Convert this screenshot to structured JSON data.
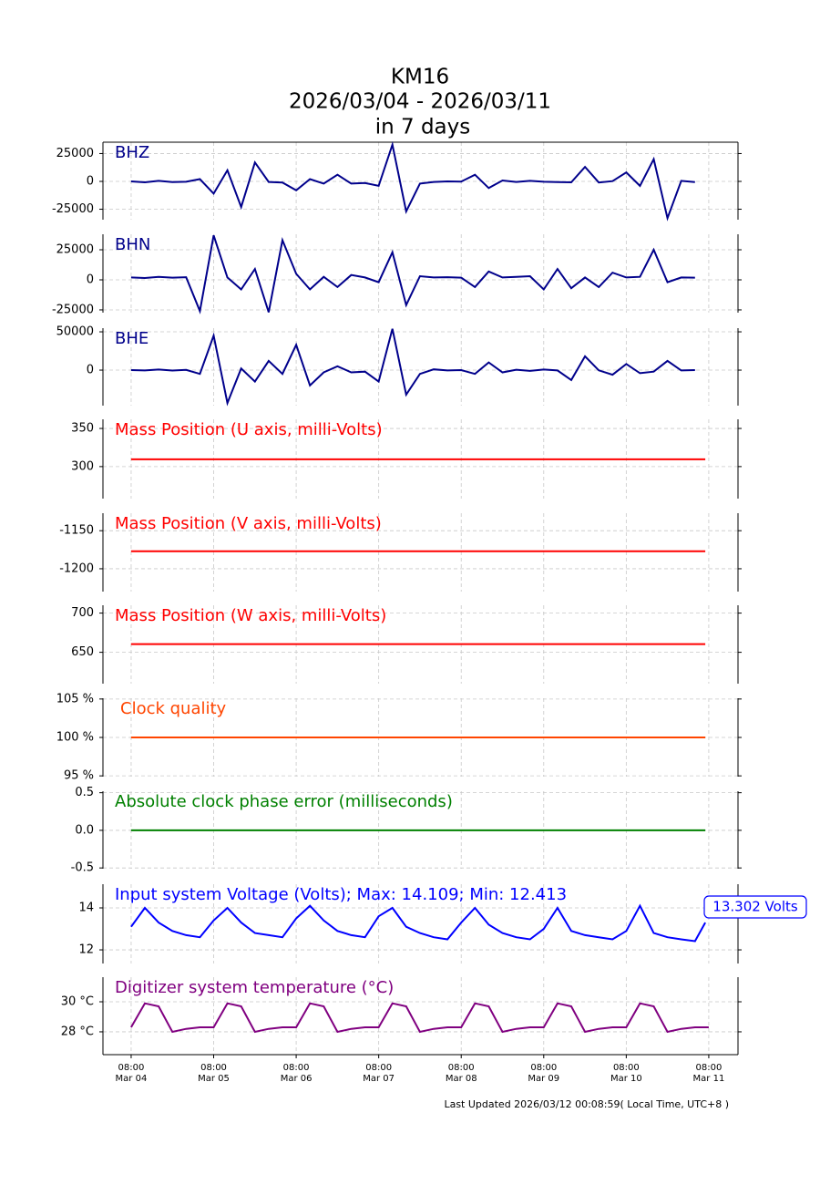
{
  "title": [
    "KM16",
    "2026/03/04 - 2026/03/11",
    "in 7 days"
  ],
  "footer": "Last Updated 2026/03/12 00:08:59( Local Time, UTC+8 )",
  "chart_data": [
    {
      "type": "line",
      "title": "BHZ",
      "grid": true,
      "xlim": [
        "Mar 03 23:48",
        "Mar 11 16:30"
      ],
      "ylim": [
        -34400,
        35200
      ],
      "yticks": [
        25000,
        0,
        -25000
      ],
      "series": [
        {
          "color": "#00008b",
          "x": [
            "Mar 04 08:00",
            "Mar 04 12:00",
            "Mar 04 16:00",
            "Mar 04 20:00",
            "Mar 05 00:00",
            "Mar 05 04:00",
            "Mar 05 08:00",
            "Mar 05 12:00",
            "Mar 05 16:00",
            "Mar 05 20:00",
            "Mar 06 00:00",
            "Mar 06 04:00",
            "Mar 06 08:00",
            "Mar 06 12:00",
            "Mar 06 16:00",
            "Mar 06 20:00",
            "Mar 07 00:00",
            "Mar 07 04:00",
            "Mar 07 08:00",
            "Mar 07 12:00",
            "Mar 07 16:00",
            "Mar 07 20:00",
            "Mar 08 00:00",
            "Mar 08 04:00",
            "Mar 08 08:00",
            "Mar 08 12:00",
            "Mar 08 16:00",
            "Mar 08 20:00",
            "Mar 09 00:00",
            "Mar 09 04:00",
            "Mar 09 08:00",
            "Mar 09 12:00",
            "Mar 09 16:00",
            "Mar 09 20:00",
            "Mar 10 00:00",
            "Mar 10 04:00",
            "Mar 10 08:00",
            "Mar 10 12:00",
            "Mar 10 16:00",
            "Mar 10 20:00",
            "Mar 11 00:00",
            "Mar 11 04:00"
          ],
          "values": [
            0,
            -800,
            500,
            -700,
            -300,
            2000,
            -11000,
            10000,
            -23000,
            17000,
            -500,
            -1000,
            -8000,
            2000,
            -2000,
            6000,
            -2000,
            -1500,
            -4000,
            33000,
            -27000,
            -2000,
            -500,
            0,
            -200,
            6000,
            -6000,
            800,
            -500,
            500,
            -300,
            -700,
            -800,
            13000,
            -1000,
            200,
            8000,
            -4000,
            20000,
            -33000,
            500,
            -700
          ]
        }
      ]
    },
    {
      "type": "line",
      "title": "BHN",
      "grid": true,
      "xlim": [
        "Mar 03 23:48",
        "Mar 11 16:30"
      ],
      "ylim": [
        -27300,
        37900
      ],
      "yticks": [
        25000,
        0,
        -25000
      ],
      "series": [
        {
          "color": "#00008b",
          "x": [
            "Mar 04 08:00",
            "Mar 04 12:00",
            "Mar 04 16:00",
            "Mar 04 20:00",
            "Mar 05 00:00",
            "Mar 05 04:00",
            "Mar 05 08:00",
            "Mar 05 12:00",
            "Mar 05 16:00",
            "Mar 05 20:00",
            "Mar 06 00:00",
            "Mar 06 04:00",
            "Mar 06 08:00",
            "Mar 06 12:00",
            "Mar 06 16:00",
            "Mar 06 20:00",
            "Mar 07 00:00",
            "Mar 07 04:00",
            "Mar 07 08:00",
            "Mar 07 12:00",
            "Mar 07 16:00",
            "Mar 07 20:00",
            "Mar 08 00:00",
            "Mar 08 04:00",
            "Mar 08 08:00",
            "Mar 08 12:00",
            "Mar 08 16:00",
            "Mar 08 20:00",
            "Mar 09 00:00",
            "Mar 09 04:00",
            "Mar 09 08:00",
            "Mar 09 12:00",
            "Mar 09 16:00",
            "Mar 09 20:00",
            "Mar 10 00:00",
            "Mar 10 04:00",
            "Mar 10 08:00",
            "Mar 10 12:00",
            "Mar 10 16:00",
            "Mar 10 20:00",
            "Mar 11 00:00",
            "Mar 11 04:00"
          ],
          "values": [
            2000,
            1500,
            2500,
            1800,
            2200,
            -26000,
            37000,
            2000,
            -8000,
            9000,
            -27000,
            33000,
            5000,
            -8000,
            2500,
            -6000,
            4000,
            2000,
            -2000,
            23000,
            -21000,
            3000,
            2000,
            2200,
            1800,
            -6000,
            7000,
            2000,
            2500,
            3000,
            -8000,
            9000,
            -7000,
            2000,
            -6000,
            6000,
            2000,
            2500,
            25000,
            -2000,
            2000,
            1800
          ]
        }
      ]
    },
    {
      "type": "line",
      "title": "BHE",
      "grid": true,
      "xlim": [
        "Mar 03 23:48",
        "Mar 11 16:30"
      ],
      "ylim": [
        -46400,
        54800
      ],
      "yticks": [
        50000,
        0
      ],
      "series": [
        {
          "color": "#00008b",
          "x": [
            "Mar 04 08:00",
            "Mar 04 12:00",
            "Mar 04 16:00",
            "Mar 04 20:00",
            "Mar 05 00:00",
            "Mar 05 04:00",
            "Mar 05 08:00",
            "Mar 05 12:00",
            "Mar 05 16:00",
            "Mar 05 20:00",
            "Mar 06 00:00",
            "Mar 06 04:00",
            "Mar 06 08:00",
            "Mar 06 12:00",
            "Mar 06 16:00",
            "Mar 06 20:00",
            "Mar 07 00:00",
            "Mar 07 04:00",
            "Mar 07 08:00",
            "Mar 07 12:00",
            "Mar 07 16:00",
            "Mar 07 20:00",
            "Mar 08 00:00",
            "Mar 08 04:00",
            "Mar 08 08:00",
            "Mar 08 12:00",
            "Mar 08 16:00",
            "Mar 08 20:00",
            "Mar 09 00:00",
            "Mar 09 04:00",
            "Mar 09 08:00",
            "Mar 09 12:00",
            "Mar 09 16:00",
            "Mar 09 20:00",
            "Mar 10 00:00",
            "Mar 10 04:00",
            "Mar 10 08:00",
            "Mar 10 12:00",
            "Mar 10 16:00",
            "Mar 10 20:00",
            "Mar 11 00:00",
            "Mar 11 04:00"
          ],
          "values": [
            0,
            -500,
            800,
            -600,
            300,
            -5000,
            45000,
            -43000,
            2000,
            -15000,
            12000,
            -5000,
            33000,
            -20000,
            -3000,
            5000,
            -3000,
            -2000,
            -15000,
            54000,
            -32000,
            -5000,
            1000,
            -500,
            0,
            -5000,
            10000,
            -3000,
            500,
            -1000,
            800,
            -500,
            -13000,
            18000,
            -300,
            -6000,
            8000,
            -4000,
            -2000,
            12000,
            -500,
            0
          ]
        }
      ]
    },
    {
      "type": "line",
      "title": "Mass Position (U axis, milli-Volts)",
      "grid": true,
      "xlim": [
        "Mar 03 23:48",
        "Mar 11 16:30"
      ],
      "ylim": [
        258,
        362
      ],
      "yticks": [
        350,
        300
      ],
      "series": [
        {
          "color": "#ff0000",
          "x": [
            "Mar 04 08:00",
            "Mar 11 07:00"
          ],
          "values": [
            309.5,
            309.5
          ]
        }
      ]
    },
    {
      "type": "line",
      "title": "Mass Position (V axis, milli-Volts)",
      "grid": true,
      "xlim": [
        "Mar 03 23:48",
        "Mar 11 16:30"
      ],
      "ylim": [
        -1230,
        -1127
      ],
      "yticks": [
        -1150,
        -1200
      ],
      "series": [
        {
          "color": "#ff0000",
          "x": [
            "Mar 04 08:00",
            "Mar 11 07:00"
          ],
          "values": [
            -1177,
            -1177
          ]
        }
      ]
    },
    {
      "type": "line",
      "title": "Mass Position (W axis, milli-Volts)",
      "grid": true,
      "xlim": [
        "Mar 03 23:48",
        "Mar 11 16:30"
      ],
      "ylim": [
        610,
        710
      ],
      "yticks": [
        700,
        650
      ],
      "series": [
        {
          "color": "#ff0000",
          "x": [
            "Mar 04 08:00",
            "Mar 11 07:00"
          ],
          "values": [
            660.5,
            660.5
          ]
        }
      ]
    },
    {
      "type": "line",
      "title": "Clock quality",
      "grid": true,
      "xlim": [
        "Mar 03 23:48",
        "Mar 11 16:30"
      ],
      "ylim": [
        94.9,
        105.1
      ],
      "yticks": [
        {
          "value": 105,
          "label": "105 %"
        },
        {
          "value": 100,
          "label": "100 %"
        },
        {
          "value": 95,
          "label": "95 %"
        }
      ],
      "series": [
        {
          "color": "#ff4500",
          "x": [
            "Mar 04 08:00",
            "Mar 11 07:00"
          ],
          "values": [
            100,
            100
          ]
        }
      ]
    },
    {
      "type": "line",
      "title": "Absolute clock phase error (milliseconds)",
      "grid": true,
      "xlim": [
        "Mar 03 23:48",
        "Mar 11 16:30"
      ],
      "ylim": [
        -0.51,
        0.52
      ],
      "yticks": [
        0.5,
        {
          "value": 0,
          "label": "0.0"
        },
        -0.5
      ],
      "series": [
        {
          "color": "#008000",
          "x": [
            "Mar 04 08:00",
            "Mar 11 07:00"
          ],
          "values": [
            0,
            0
          ]
        }
      ]
    },
    {
      "type": "line",
      "title": "Input system Voltage (Volts);    Max: 14.109; Min: 12.413",
      "annotation": "13.302 Volts",
      "grid": true,
      "xlim": [
        "Mar 03 23:48",
        "Mar 11 16:30"
      ],
      "ylim": [
        11.35,
        15.13
      ],
      "yticks": [
        14,
        12
      ],
      "series": [
        {
          "color": "#0000ff",
          "x": [
            "Mar 04 08:00",
            "Mar 04 12:00",
            "Mar 04 16:00",
            "Mar 04 20:00",
            "Mar 05 00:00",
            "Mar 05 04:00",
            "Mar 05 08:00",
            "Mar 05 12:00",
            "Mar 05 16:00",
            "Mar 05 20:00",
            "Mar 06 00:00",
            "Mar 06 04:00",
            "Mar 06 08:00",
            "Mar 06 12:00",
            "Mar 06 16:00",
            "Mar 06 20:00",
            "Mar 07 00:00",
            "Mar 07 04:00",
            "Mar 07 08:00",
            "Mar 07 12:00",
            "Mar 07 16:00",
            "Mar 07 20:00",
            "Mar 08 00:00",
            "Mar 08 04:00",
            "Mar 08 08:00",
            "Mar 08 12:00",
            "Mar 08 16:00",
            "Mar 08 20:00",
            "Mar 09 00:00",
            "Mar 09 04:00",
            "Mar 09 08:00",
            "Mar 09 12:00",
            "Mar 09 16:00",
            "Mar 09 20:00",
            "Mar 10 00:00",
            "Mar 10 04:00",
            "Mar 10 08:00",
            "Mar 10 12:00",
            "Mar 10 16:00",
            "Mar 10 20:00",
            "Mar 11 00:00",
            "Mar 11 04:00",
            "Mar 11 07:00"
          ],
          "values": [
            13.1,
            14.0,
            13.3,
            12.9,
            12.7,
            12.6,
            13.4,
            14.0,
            13.3,
            12.8,
            12.7,
            12.6,
            13.5,
            14.1,
            13.4,
            12.9,
            12.7,
            12.6,
            13.6,
            14.0,
            13.1,
            12.8,
            12.6,
            12.5,
            13.3,
            14.0,
            13.2,
            12.8,
            12.6,
            12.5,
            13.0,
            14.0,
            12.9,
            12.7,
            12.6,
            12.5,
            12.9,
            14.1,
            12.8,
            12.6,
            12.5,
            12.413,
            13.302
          ]
        }
      ]
    },
    {
      "type": "line",
      "title": "Digitizer system temperature (°C)",
      "grid": true,
      "xlim": [
        "Mar 03 23:48",
        "Mar 11 16:30"
      ],
      "ylim": [
        26.48,
        31.64
      ],
      "yticks": [
        {
          "value": 30,
          "label": "30 °C"
        },
        {
          "value": 28,
          "label": "28 °C"
        }
      ],
      "xticks": [
        {
          "value": "Mar 04 08:00",
          "label": [
            "08:00",
            "Mar 04"
          ]
        },
        {
          "value": "Mar 05 08:00",
          "label": [
            "08:00",
            "Mar 05"
          ]
        },
        {
          "value": "Mar 06 08:00",
          "label": [
            "08:00",
            "Mar 06"
          ]
        },
        {
          "value": "Mar 07 08:00",
          "label": [
            "08:00",
            "Mar 07"
          ]
        },
        {
          "value": "Mar 08 08:00",
          "label": [
            "08:00",
            "Mar 08"
          ]
        },
        {
          "value": "Mar 09 08:00",
          "label": [
            "08:00",
            "Mar 09"
          ]
        },
        {
          "value": "Mar 10 08:00",
          "label": [
            "08:00",
            "Mar 10"
          ]
        },
        {
          "value": "Mar 11 08:00",
          "label": [
            "08:00",
            "Mar 11"
          ]
        }
      ],
      "series": [
        {
          "color": "#800080",
          "x": [
            "Mar 04 08:00",
            "Mar 04 12:00",
            "Mar 04 16:00",
            "Mar 04 20:00",
            "Mar 05 00:00",
            "Mar 05 04:00",
            "Mar 05 08:00",
            "Mar 05 12:00",
            "Mar 05 16:00",
            "Mar 05 20:00",
            "Mar 06 00:00",
            "Mar 06 04:00",
            "Mar 06 08:00",
            "Mar 06 12:00",
            "Mar 06 16:00",
            "Mar 06 20:00",
            "Mar 07 00:00",
            "Mar 07 04:00",
            "Mar 07 08:00",
            "Mar 07 12:00",
            "Mar 07 16:00",
            "Mar 07 20:00",
            "Mar 08 00:00",
            "Mar 08 04:00",
            "Mar 08 08:00",
            "Mar 08 12:00",
            "Mar 08 16:00",
            "Mar 08 20:00",
            "Mar 09 00:00",
            "Mar 09 04:00",
            "Mar 09 08:00",
            "Mar 09 12:00",
            "Mar 09 16:00",
            "Mar 09 20:00",
            "Mar 10 00:00",
            "Mar 10 04:00",
            "Mar 10 08:00",
            "Mar 10 12:00",
            "Mar 10 16:00",
            "Mar 10 20:00",
            "Mar 11 00:00",
            "Mar 11 04:00",
            "Mar 11 08:00"
          ],
          "values": [
            28.3,
            29.9,
            29.7,
            28.0,
            28.2,
            28.3,
            28.3,
            29.9,
            29.7,
            28.0,
            28.2,
            28.3,
            28.3,
            29.9,
            29.7,
            28.0,
            28.2,
            28.3,
            28.3,
            29.9,
            29.7,
            28.0,
            28.2,
            28.3,
            28.3,
            29.9,
            29.7,
            28.0,
            28.2,
            28.3,
            28.3,
            29.9,
            29.7,
            28.0,
            28.2,
            28.3,
            28.3,
            29.9,
            29.7,
            28.0,
            28.2,
            28.3,
            28.3
          ]
        }
      ]
    }
  ]
}
